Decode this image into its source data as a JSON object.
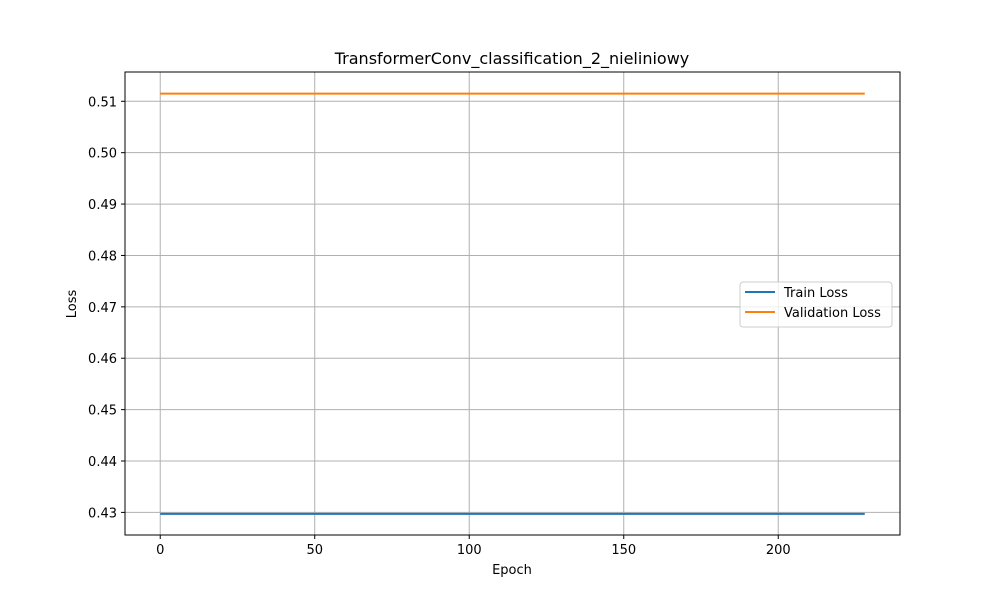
{
  "chart_data": {
    "type": "line",
    "title": "TransformerConv_classification_2_nieliniowy",
    "xlabel": "Epoch",
    "ylabel": "Loss",
    "xlim": [
      -11.4,
      239.4
    ],
    "ylim": [
      0.4256,
      0.5157
    ],
    "xticks": [
      0,
      50,
      100,
      150,
      200
    ],
    "yticks": [
      0.43,
      0.44,
      0.45,
      0.46,
      0.47,
      0.48,
      0.49,
      0.5,
      0.51
    ],
    "ytick_labels": [
      "0.43",
      "0.44",
      "0.45",
      "0.46",
      "0.47",
      "0.48",
      "0.49",
      "0.50",
      "0.51"
    ],
    "xtick_labels": [
      "0",
      "50",
      "100",
      "150",
      "200"
    ],
    "grid": true,
    "legend_position": "center-right",
    "series": [
      {
        "name": "Train Loss",
        "color": "#1f77b4",
        "x": [
          0,
          228
        ],
        "y": [
          0.4297,
          0.4297
        ]
      },
      {
        "name": "Validation Loss",
        "color": "#ff7f0e",
        "x": [
          0,
          228
        ],
        "y": [
          0.5115,
          0.5115
        ]
      }
    ]
  }
}
